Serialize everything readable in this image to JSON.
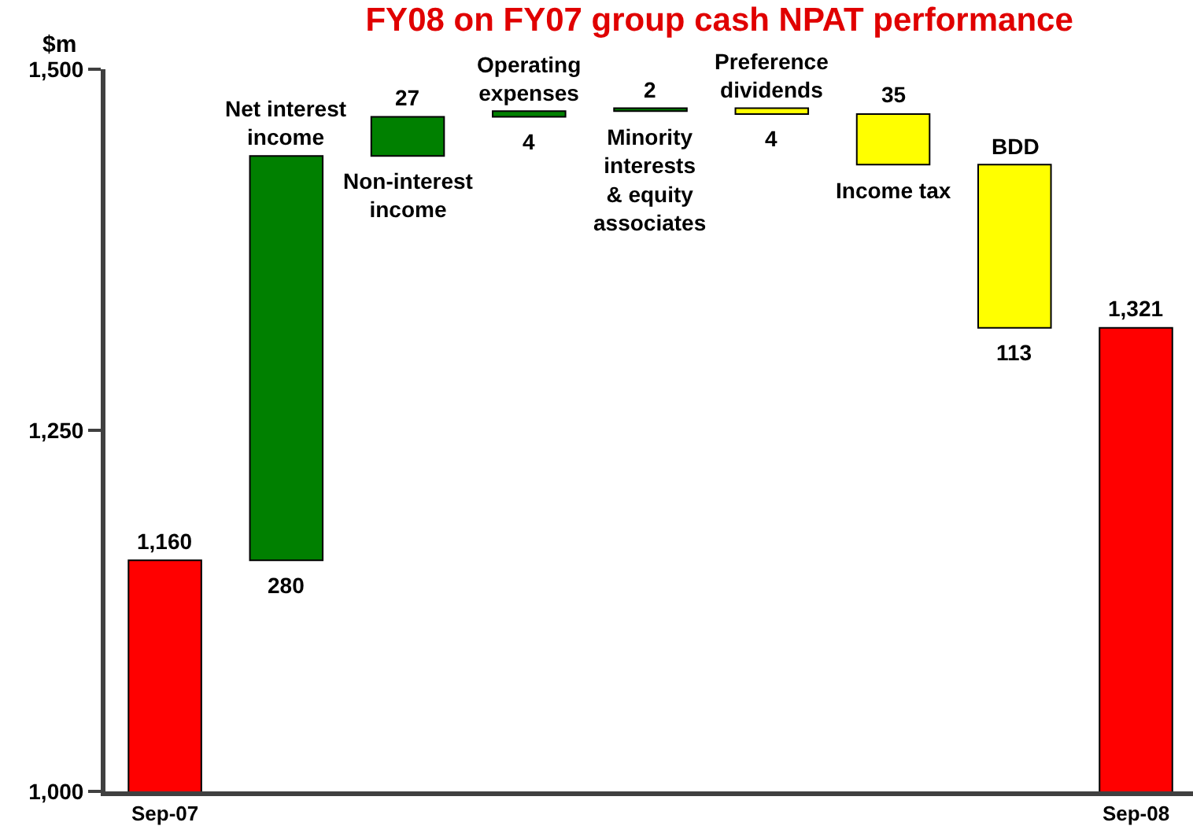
{
  "chart_data": {
    "type": "bar",
    "title": "FY08 on FY07 group cash NPAT performance",
    "ylabel": "$m",
    "categories": [
      "Sep-07",
      "Net interest income",
      "Non-interest income",
      "Operating expenses",
      "Minority interests & equity associates",
      "Preference dividends",
      "Income tax",
      "BDD",
      "Sep-08"
    ],
    "values": [
      1160,
      280,
      27,
      4,
      2,
      -4,
      -35,
      -113,
      1321
    ],
    "base": [
      null,
      1160,
      1440,
      1467,
      1471,
      1473,
      1469,
      1434,
      null
    ],
    "colors": [
      "#ff0000",
      "#008000",
      "#008000",
      "#008000",
      "#008000",
      "#ffff00",
      "#ffff00",
      "#ffff00",
      "#ff0000"
    ],
    "value_labels": [
      "1,160",
      "280",
      "27",
      "4",
      "2",
      "4",
      "35",
      "113",
      "1,321"
    ],
    "ylim": [
      1000,
      1500
    ],
    "yticks": [
      {
        "value": 1000,
        "label": "1,000"
      },
      {
        "value": 1250,
        "label": "1,250"
      },
      {
        "value": 1500,
        "label": "1,500"
      }
    ]
  }
}
